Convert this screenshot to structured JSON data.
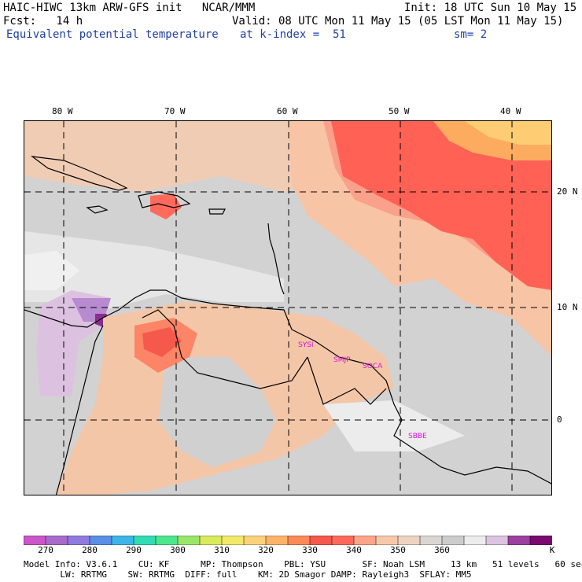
{
  "header": {
    "title": "HAIC-HIWC 13km ARW-GFS init   NCAR/MMM",
    "init": "Init: 18 UTC Sun 10 May 15",
    "fcst": "Fcst:   14 h",
    "valid": "Valid: 08 UTC Mon 11 May 15 (05 LST Mon 11 May 15)",
    "field": "Equivalent potential temperature",
    "kindex": "at k-index =  51",
    "sm": "sm= 2"
  },
  "axes": {
    "lon_labels": [
      "80 W",
      "70 W",
      "60 W",
      "50 W",
      "40 W"
    ],
    "lat_labels": [
      "20 N",
      "10 N",
      "0"
    ]
  },
  "stations": [
    "SYSI",
    "SMJP",
    "SOCA",
    "SBBE"
  ],
  "colorbar": {
    "colors": [
      "#cc55cc",
      "#a86acb",
      "#8f7bdf",
      "#5b8ee7",
      "#3cb6e7",
      "#31dcb5",
      "#4ee68c",
      "#9ae66b",
      "#d9ea5a",
      "#f2e86a",
      "#fbd27a",
      "#fdb26a",
      "#fb8a56",
      "#f5594b",
      "#ff6a5c",
      "#fca58a",
      "#f7c8a8",
      "#eed4c0",
      "#d9d6d4",
      "#cccccc",
      "#ececec",
      "#dcc3e0",
      "#9b3fa0",
      "#7a0a70"
    ],
    "labels": [
      "270",
      "280",
      "290",
      "300",
      "310",
      "320",
      "330",
      "340",
      "350",
      "360"
    ],
    "unit": "K"
  },
  "footer": {
    "line1": "Model Info: V3.6.1    CU: KF      MP: Thompson    PBL: YSU       SF: Noah LSM     13 km   51 levels   60 sec",
    "line2": "       LW: RRTMG    SW: RRTMG  DIFF: full    KM: 2D Smagor DAMP: Rayleigh3  SFLAY: MM5"
  }
}
